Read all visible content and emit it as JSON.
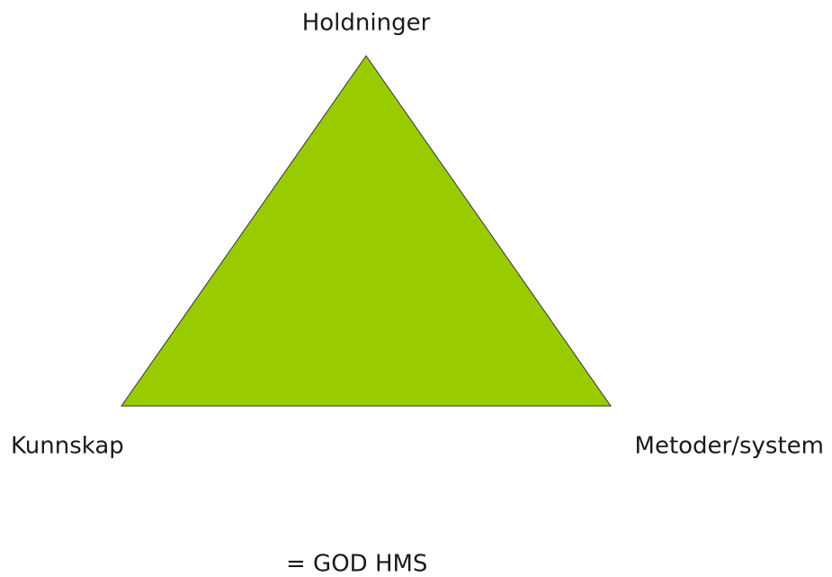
{
  "nodes": [
    {
      "label": "Holdninger"
    },
    {
      "label": "Kunnskap"
    },
    {
      "label": "Metoder/system"
    }
  ],
  "result": "= GOD HMS"
}
